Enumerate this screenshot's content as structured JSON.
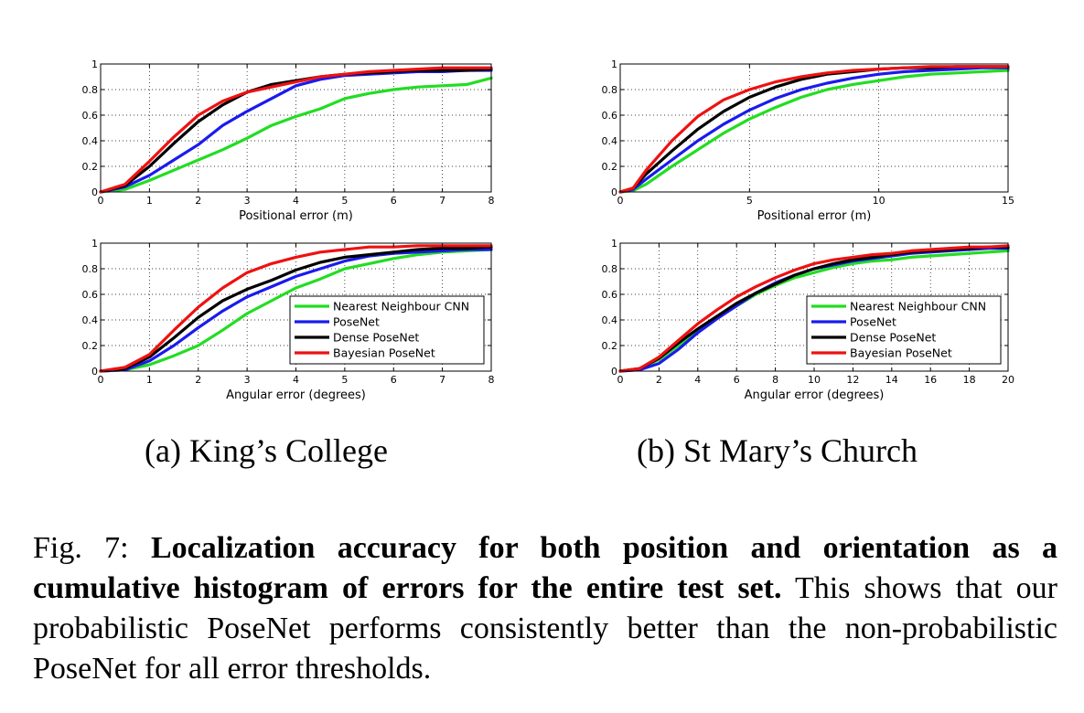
{
  "subcaptions": {
    "a": "(a) King’s College",
    "b": "(b) St Mary’s Church"
  },
  "caption": {
    "prefix": "Fig. 7: ",
    "bold": "Localization accuracy for both position and orientation as a cumulative histogram of errors for the entire test set.",
    "rest": " This shows that our probabilistic PoseNet performs consistently better than the non-probabilistic PoseNet for all error thresholds."
  },
  "colors": {
    "Nearest Neighbour CNN": "#22dd22",
    "PoseNet": "#1a1aee",
    "Dense PoseNet": "#000000",
    "Bayesian PoseNet": "#ee1111"
  },
  "chart_data": [
    {
      "type": "line",
      "panel": "King’s College",
      "xlabel": "Positional error (m)",
      "ylabel": "",
      "xlim": [
        0,
        8
      ],
      "ylim": [
        0,
        1
      ],
      "xticks": [
        0,
        1,
        2,
        3,
        4,
        5,
        6,
        7,
        8
      ],
      "yticks": [
        0,
        0.2,
        0.4,
        0.6,
        0.8,
        1
      ],
      "ytick_labels": [
        "0",
        "0.2",
        "0.4",
        "0.6",
        "0.8",
        "1"
      ],
      "grid": true,
      "legend": null,
      "series": [
        {
          "name": "Nearest Neighbour CNN",
          "x": [
            0,
            0.5,
            1,
            1.5,
            2,
            2.5,
            3,
            3.5,
            4,
            4.5,
            5,
            5.5,
            6,
            6.5,
            7,
            7.5,
            8
          ],
          "y": [
            0,
            0.02,
            0.09,
            0.17,
            0.25,
            0.33,
            0.42,
            0.52,
            0.59,
            0.65,
            0.73,
            0.77,
            0.8,
            0.82,
            0.83,
            0.84,
            0.89
          ]
        },
        {
          "name": "PoseNet",
          "x": [
            0,
            0.5,
            1,
            1.5,
            2,
            2.5,
            3,
            3.5,
            4,
            4.5,
            5,
            5.5,
            6,
            6.5,
            7,
            7.5,
            8
          ],
          "y": [
            0,
            0.04,
            0.13,
            0.25,
            0.37,
            0.52,
            0.63,
            0.73,
            0.83,
            0.88,
            0.91,
            0.92,
            0.93,
            0.94,
            0.94,
            0.95,
            0.95
          ]
        },
        {
          "name": "Dense PoseNet",
          "x": [
            0,
            0.5,
            1,
            1.5,
            2,
            2.5,
            3,
            3.5,
            4,
            4.5,
            5,
            5.5,
            6,
            6.5,
            7,
            7.5,
            8
          ],
          "y": [
            0,
            0.05,
            0.2,
            0.38,
            0.55,
            0.68,
            0.78,
            0.84,
            0.87,
            0.9,
            0.92,
            0.93,
            0.94,
            0.95,
            0.95,
            0.95,
            0.96
          ]
        },
        {
          "name": "Bayesian PoseNet",
          "x": [
            0,
            0.5,
            1,
            1.5,
            2,
            2.5,
            3,
            3.5,
            4,
            4.5,
            5,
            5.5,
            6,
            6.5,
            7,
            7.5,
            8
          ],
          "y": [
            0,
            0.06,
            0.24,
            0.43,
            0.6,
            0.71,
            0.78,
            0.82,
            0.86,
            0.9,
            0.92,
            0.94,
            0.95,
            0.96,
            0.97,
            0.97,
            0.97
          ]
        }
      ]
    },
    {
      "type": "line",
      "panel": "St Mary’s Church",
      "xlabel": "Positional error (m)",
      "ylabel": "",
      "xlim": [
        0,
        15
      ],
      "ylim": [
        0,
        1
      ],
      "xticks": [
        0,
        5,
        10,
        15
      ],
      "yticks": [
        0,
        0.2,
        0.4,
        0.6,
        0.8,
        1
      ],
      "ytick_labels": [
        "0",
        "0.2",
        "0.4",
        "0.6",
        "0.8",
        "1"
      ],
      "grid": true,
      "legend": null,
      "series": [
        {
          "name": "Nearest Neighbour CNN",
          "x": [
            0,
            0.5,
            1,
            2,
            3,
            4,
            5,
            6,
            7,
            8,
            9,
            10,
            11,
            12,
            13,
            14,
            15
          ],
          "y": [
            0,
            0.01,
            0.06,
            0.2,
            0.33,
            0.46,
            0.57,
            0.66,
            0.74,
            0.8,
            0.84,
            0.87,
            0.9,
            0.92,
            0.93,
            0.94,
            0.95
          ]
        },
        {
          "name": "PoseNet",
          "x": [
            0,
            0.5,
            1,
            2,
            3,
            4,
            5,
            6,
            7,
            8,
            9,
            10,
            11,
            12,
            13,
            14,
            15
          ],
          "y": [
            0,
            0.02,
            0.1,
            0.25,
            0.4,
            0.53,
            0.64,
            0.73,
            0.8,
            0.85,
            0.89,
            0.92,
            0.94,
            0.95,
            0.96,
            0.97,
            0.97
          ]
        },
        {
          "name": "Dense PoseNet",
          "x": [
            0,
            0.5,
            1,
            2,
            3,
            4,
            5,
            6,
            7,
            8,
            9,
            10,
            11,
            12,
            13,
            14,
            15
          ],
          "y": [
            0,
            0.03,
            0.14,
            0.32,
            0.49,
            0.63,
            0.74,
            0.82,
            0.88,
            0.92,
            0.94,
            0.96,
            0.97,
            0.97,
            0.98,
            0.98,
            0.98
          ]
        },
        {
          "name": "Bayesian PoseNet",
          "x": [
            0,
            0.5,
            1,
            2,
            3,
            4,
            5,
            6,
            7,
            8,
            9,
            10,
            11,
            12,
            13,
            14,
            15
          ],
          "y": [
            0,
            0.03,
            0.17,
            0.4,
            0.59,
            0.72,
            0.8,
            0.86,
            0.9,
            0.93,
            0.95,
            0.96,
            0.97,
            0.98,
            0.98,
            0.98,
            0.98
          ]
        }
      ]
    },
    {
      "type": "line",
      "panel": "King’s College",
      "xlabel": "Angular error (degrees)",
      "ylabel": "",
      "xlim": [
        0,
        8
      ],
      "ylim": [
        0,
        1
      ],
      "xticks": [
        0,
        1,
        2,
        3,
        4,
        5,
        6,
        7,
        8
      ],
      "yticks": [
        0,
        0.2,
        0.4,
        0.6,
        0.8,
        1
      ],
      "ytick_labels": [
        "0",
        "0.2",
        "0.4",
        "0.6",
        "0.8",
        "1"
      ],
      "grid": true,
      "legend": "bottom-right",
      "series": [
        {
          "name": "Nearest Neighbour CNN",
          "x": [
            0,
            0.5,
            1,
            1.5,
            2,
            2.5,
            3,
            3.5,
            4,
            4.5,
            5,
            5.5,
            6,
            6.5,
            7,
            7.5,
            8
          ],
          "y": [
            0,
            0.01,
            0.05,
            0.12,
            0.2,
            0.32,
            0.45,
            0.55,
            0.65,
            0.72,
            0.8,
            0.84,
            0.88,
            0.91,
            0.93,
            0.94,
            0.95
          ]
        },
        {
          "name": "PoseNet",
          "x": [
            0,
            0.5,
            1,
            1.5,
            2,
            2.5,
            3,
            3.5,
            4,
            4.5,
            5,
            5.5,
            6,
            6.5,
            7,
            7.5,
            8
          ],
          "y": [
            0,
            0.01,
            0.08,
            0.2,
            0.34,
            0.47,
            0.58,
            0.66,
            0.74,
            0.8,
            0.86,
            0.9,
            0.92,
            0.93,
            0.94,
            0.95,
            0.95
          ]
        },
        {
          "name": "Dense PoseNet",
          "x": [
            0,
            0.5,
            1,
            1.5,
            2,
            2.5,
            3,
            3.5,
            4,
            4.5,
            5,
            5.5,
            6,
            6.5,
            7,
            7.5,
            8
          ],
          "y": [
            0,
            0.02,
            0.11,
            0.26,
            0.42,
            0.55,
            0.64,
            0.71,
            0.79,
            0.85,
            0.89,
            0.91,
            0.93,
            0.95,
            0.96,
            0.96,
            0.97
          ]
        },
        {
          "name": "Bayesian PoseNet",
          "x": [
            0,
            0.5,
            1,
            1.5,
            2,
            2.5,
            3,
            3.5,
            4,
            4.5,
            5,
            5.5,
            6,
            6.5,
            7,
            7.5,
            8
          ],
          "y": [
            0,
            0.03,
            0.13,
            0.32,
            0.5,
            0.65,
            0.77,
            0.84,
            0.89,
            0.93,
            0.95,
            0.97,
            0.97,
            0.98,
            0.98,
            0.98,
            0.98
          ]
        }
      ]
    },
    {
      "type": "line",
      "panel": "St Mary’s Church",
      "xlabel": "Angular error (degrees)",
      "ylabel": "",
      "xlim": [
        0,
        20
      ],
      "ylim": [
        0,
        1
      ],
      "xticks": [
        0,
        2,
        4,
        6,
        8,
        10,
        12,
        14,
        16,
        18,
        20
      ],
      "yticks": [
        0,
        0.2,
        0.4,
        0.6,
        0.8,
        1
      ],
      "ytick_labels": [
        "0",
        "0.2",
        "0.4",
        "0.6",
        "0.8",
        "1"
      ],
      "grid": true,
      "legend": "bottom-right",
      "series": [
        {
          "name": "Nearest Neighbour CNN",
          "x": [
            0,
            1,
            2,
            3,
            4,
            5,
            6,
            7,
            8,
            9,
            10,
            11,
            12,
            13,
            14,
            15,
            16,
            17,
            18,
            19,
            20
          ],
          "y": [
            0,
            0.02,
            0.09,
            0.2,
            0.32,
            0.42,
            0.51,
            0.6,
            0.67,
            0.73,
            0.77,
            0.81,
            0.84,
            0.86,
            0.87,
            0.89,
            0.9,
            0.91,
            0.92,
            0.93,
            0.94
          ]
        },
        {
          "name": "PoseNet",
          "x": [
            0,
            1,
            2,
            3,
            4,
            5,
            6,
            7,
            8,
            9,
            10,
            11,
            12,
            13,
            14,
            15,
            16,
            17,
            18,
            19,
            20
          ],
          "y": [
            0,
            0.01,
            0.06,
            0.17,
            0.3,
            0.41,
            0.51,
            0.61,
            0.69,
            0.75,
            0.8,
            0.83,
            0.86,
            0.88,
            0.9,
            0.92,
            0.93,
            0.94,
            0.95,
            0.96,
            0.96
          ]
        },
        {
          "name": "Dense PoseNet",
          "x": [
            0,
            1,
            2,
            3,
            4,
            5,
            6,
            7,
            8,
            9,
            10,
            11,
            12,
            13,
            14,
            15,
            16,
            17,
            18,
            19,
            20
          ],
          "y": [
            0,
            0.02,
            0.1,
            0.22,
            0.33,
            0.43,
            0.53,
            0.61,
            0.68,
            0.75,
            0.8,
            0.84,
            0.87,
            0.89,
            0.91,
            0.93,
            0.94,
            0.95,
            0.96,
            0.97,
            0.97
          ]
        },
        {
          "name": "Bayesian PoseNet",
          "x": [
            0,
            1,
            2,
            3,
            4,
            5,
            6,
            7,
            8,
            9,
            10,
            11,
            12,
            13,
            14,
            15,
            16,
            17,
            18,
            19,
            20
          ],
          "y": [
            0,
            0.02,
            0.11,
            0.24,
            0.37,
            0.48,
            0.58,
            0.66,
            0.73,
            0.79,
            0.84,
            0.87,
            0.89,
            0.91,
            0.92,
            0.94,
            0.95,
            0.96,
            0.97,
            0.97,
            0.98
          ]
        }
      ]
    }
  ]
}
